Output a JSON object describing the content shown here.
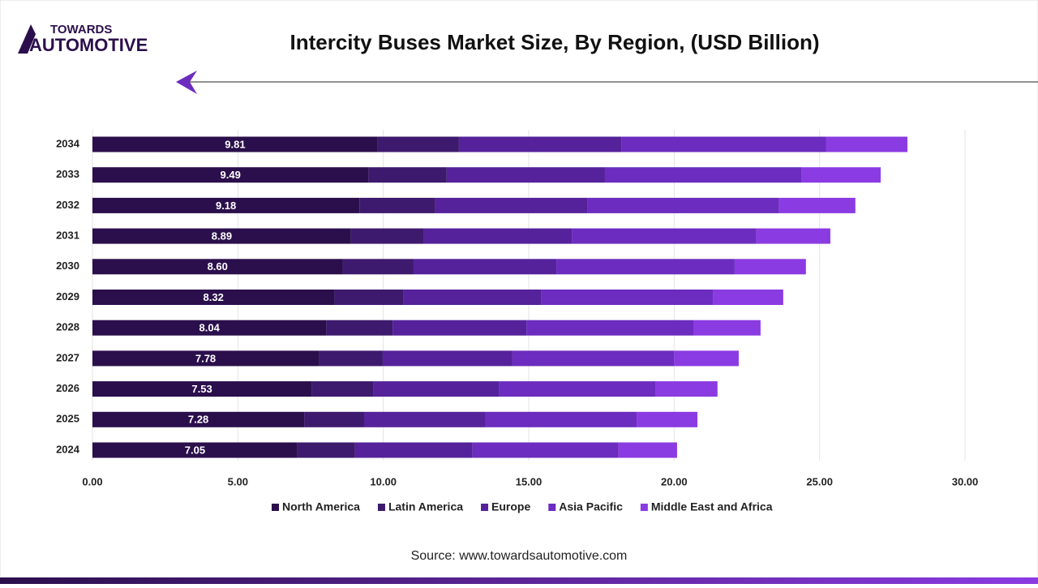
{
  "brand": {
    "line1": "TOWARDS",
    "line2": "AUTOMOTIVE"
  },
  "source": "Source: www.towardsautomotive.com",
  "chart_data": {
    "type": "stacked-barh",
    "title": "Intercity Buses Market Size, By Region, (USD Billion)",
    "categories": [
      "2024",
      "2025",
      "2026",
      "2027",
      "2028",
      "2029",
      "2030",
      "2031",
      "2032",
      "2033",
      "2034"
    ],
    "series": [
      {
        "name": "North America",
        "color": "#2b0f4c",
        "values": [
          7.05,
          7.28,
          7.53,
          7.78,
          8.04,
          8.32,
          8.6,
          8.89,
          9.18,
          9.49,
          9.81
        ],
        "value_labels": [
          "7.05",
          "7.28",
          "7.53",
          "7.78",
          "8.04",
          "8.32",
          "8.60",
          "8.89",
          "9.18",
          "9.49",
          "9.81"
        ]
      },
      {
        "name": "Latin America",
        "color": "#3e1a6e",
        "values": [
          1.98,
          2.06,
          2.14,
          2.2,
          2.28,
          2.36,
          2.44,
          2.51,
          2.61,
          2.69,
          2.79
        ]
      },
      {
        "name": "Europe",
        "color": "#55229b",
        "values": [
          4.04,
          4.18,
          4.3,
          4.46,
          4.6,
          4.74,
          4.91,
          5.08,
          5.24,
          5.44,
          5.6
        ]
      },
      {
        "name": "Asia Pacific",
        "color": "#6c2cbf",
        "values": [
          5.02,
          5.19,
          5.38,
          5.56,
          5.74,
          5.93,
          6.13,
          6.35,
          6.58,
          6.77,
          7.03
        ]
      },
      {
        "name": "Middle East and Africa",
        "color": "#8b3be2",
        "values": [
          2.01,
          2.09,
          2.14,
          2.22,
          2.31,
          2.4,
          2.45,
          2.54,
          2.62,
          2.71,
          2.79
        ]
      }
    ],
    "xlim": [
      0,
      30
    ],
    "xticks": [
      {
        "value": 0,
        "label": "0.00"
      },
      {
        "value": 5,
        "label": "5.00"
      },
      {
        "value": 10,
        "label": "10.00"
      },
      {
        "value": 15,
        "label": "15.00"
      },
      {
        "value": 20,
        "label": "20.00"
      },
      {
        "value": 25,
        "label": "25.00"
      },
      {
        "value": 30,
        "label": "30.00"
      }
    ],
    "grid": true,
    "legend": "bottom"
  }
}
